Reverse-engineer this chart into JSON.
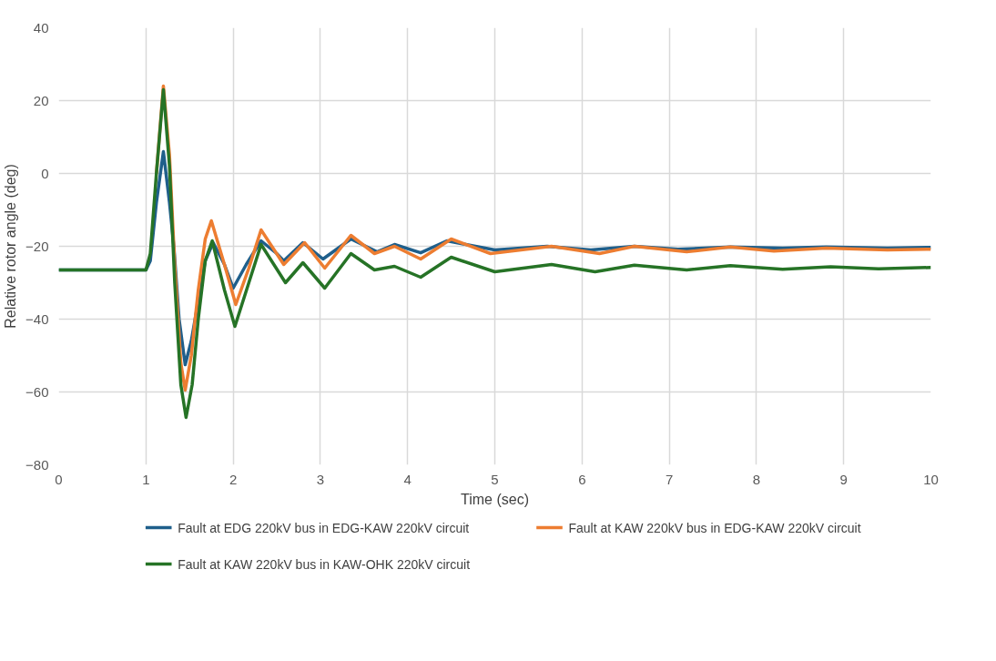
{
  "chart_data": {
    "type": "line",
    "xlabel": "Time (sec)",
    "ylabel": "Relative rotor angle (deg)",
    "xlim": [
      0,
      10
    ],
    "xticks": [
      0,
      1,
      2,
      3,
      4,
      5,
      6,
      7,
      8,
      9,
      10
    ],
    "ylim": [
      -80,
      40
    ],
    "yticks": [
      -80,
      -60,
      -40,
      -20,
      0,
      20,
      40
    ],
    "grid": true,
    "legend": "bottom",
    "line_style": "solid",
    "marker": "none",
    "series": [
      {
        "name": "Fault at EDG 220kV bus in EDG-KAW 220kV circuit",
        "color": "#1f5f8b",
        "x": [
          0,
          1.0,
          1.05,
          1.12,
          1.2,
          1.27,
          1.32,
          1.38,
          1.45,
          1.52,
          1.6,
          1.68,
          1.77,
          1.9,
          2.0,
          2.15,
          2.32,
          2.5,
          2.58,
          2.8,
          3.03,
          3.35,
          3.65,
          3.85,
          4.15,
          4.45,
          5.0,
          5.6,
          6.1,
          6.6,
          7.1,
          7.7,
          8.3,
          8.8,
          9.5,
          10
        ],
        "values": [
          -26.5,
          -26.5,
          -24,
          -8,
          6,
          -8,
          -20,
          -40,
          -52.5,
          -46,
          -35,
          -24,
          -19,
          -25,
          -31.5,
          -25,
          -18.5,
          -22,
          -24,
          -19,
          -23.5,
          -18,
          -21.5,
          -19.5,
          -21.8,
          -18.5,
          -21,
          -20,
          -21,
          -20,
          -20.8,
          -20.2,
          -20.5,
          -20.2,
          -20.5,
          -20.3
        ]
      },
      {
        "name": "Fault at KAW 220kV bus in EDG-KAW 220kV circuit",
        "color": "#ed7d31",
        "x": [
          1.12,
          1.2,
          1.27,
          1.33,
          1.4,
          1.45,
          1.52,
          1.6,
          1.68,
          1.75,
          1.9,
          2.03,
          2.18,
          2.32,
          2.58,
          2.82,
          3.05,
          3.35,
          3.62,
          3.85,
          4.15,
          4.5,
          4.95,
          5.65,
          6.2,
          6.6,
          7.2,
          7.7,
          8.2,
          8.8,
          9.5,
          10
        ],
        "values": [
          0,
          24,
          5,
          -25,
          -52,
          -59.5,
          -50,
          -32,
          -18,
          -13,
          -25,
          -36,
          -26,
          -15.5,
          -25,
          -19,
          -26,
          -17,
          -22,
          -20,
          -23.5,
          -18,
          -22,
          -20,
          -22,
          -20,
          -21.5,
          -20.2,
          -21.3,
          -20.5,
          -21,
          -20.8
        ]
      },
      {
        "name": "Fault at KAW 220kV bus in KAW-OHK 220kV circuit",
        "color": "#267326",
        "x": [
          0,
          1.0,
          1.05,
          1.12,
          1.2,
          1.27,
          1.33,
          1.4,
          1.46,
          1.53,
          1.6,
          1.68,
          1.76,
          1.9,
          2.02,
          2.18,
          2.32,
          2.6,
          2.8,
          3.05,
          3.35,
          3.62,
          3.85,
          4.15,
          4.5,
          5.0,
          5.65,
          6.15,
          6.6,
          7.2,
          7.7,
          8.3,
          8.85,
          9.4,
          10
        ],
        "values": [
          -26.5,
          -26.5,
          -22,
          0,
          23,
          2,
          -30,
          -58,
          -67,
          -58,
          -40,
          -24,
          -18.5,
          -32,
          -42,
          -30,
          -19.5,
          -30,
          -24.5,
          -31.5,
          -22,
          -26.5,
          -25.5,
          -28.5,
          -23,
          -27,
          -25,
          -27,
          -25.2,
          -26.5,
          -25.3,
          -26.3,
          -25.6,
          -26.2,
          -25.8
        ]
      }
    ]
  }
}
